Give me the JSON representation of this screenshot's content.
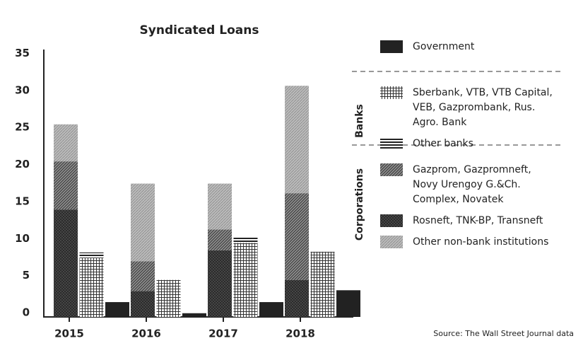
{
  "chart_data": {
    "type": "bar",
    "title": "Syndicated Loans",
    "source": "Source: The Wall Street Journal data",
    "categories": [
      "2015",
      "2016",
      "2017",
      "2018"
    ],
    "ylim": [
      0,
      35
    ],
    "yticks": [
      0,
      5,
      10,
      15,
      20,
      25,
      30,
      35
    ],
    "bar_groups": [
      {
        "series": [
          {
            "name": "Government",
            "color": "#222222",
            "pattern": "solid",
            "values": [
              2,
              0.5,
              2,
              3.6
            ]
          }
        ]
      },
      {
        "label": "Banks",
        "series": [
          {
            "name": "Sberbank, VTB, VTB Capital, VEB, Gazprombank, Rus. Agro. Bank",
            "color": "#333333",
            "pattern": "grid",
            "values": [
              8,
              5,
              10,
              8.8
            ]
          },
          {
            "name": "Other banks",
            "color": "#222222",
            "pattern": "hlines",
            "values": [
              0.7,
              0,
              0.7,
              0
            ]
          }
        ]
      },
      {
        "label": "Corporations",
        "series": [
          {
            "name": "Gazprom, Gazpromneft, Novy Urengoy G.&Ch. Complex, Novatek",
            "color": "#444444",
            "pattern": "diag",
            "values": [
              6.5,
              4,
              2.8,
              11.7
            ]
          },
          {
            "name": "Rosneft, TNK-BP, Transneft",
            "color": "#2a2a2a",
            "pattern": "cross",
            "values": [
              14.5,
              3.5,
              9,
              5
            ]
          },
          {
            "name": "Other non-bank institutions",
            "color": "#8a8a8a",
            "pattern": "light",
            "values": [
              5,
              10.5,
              6.2,
              14.5
            ]
          }
        ]
      }
    ]
  }
}
